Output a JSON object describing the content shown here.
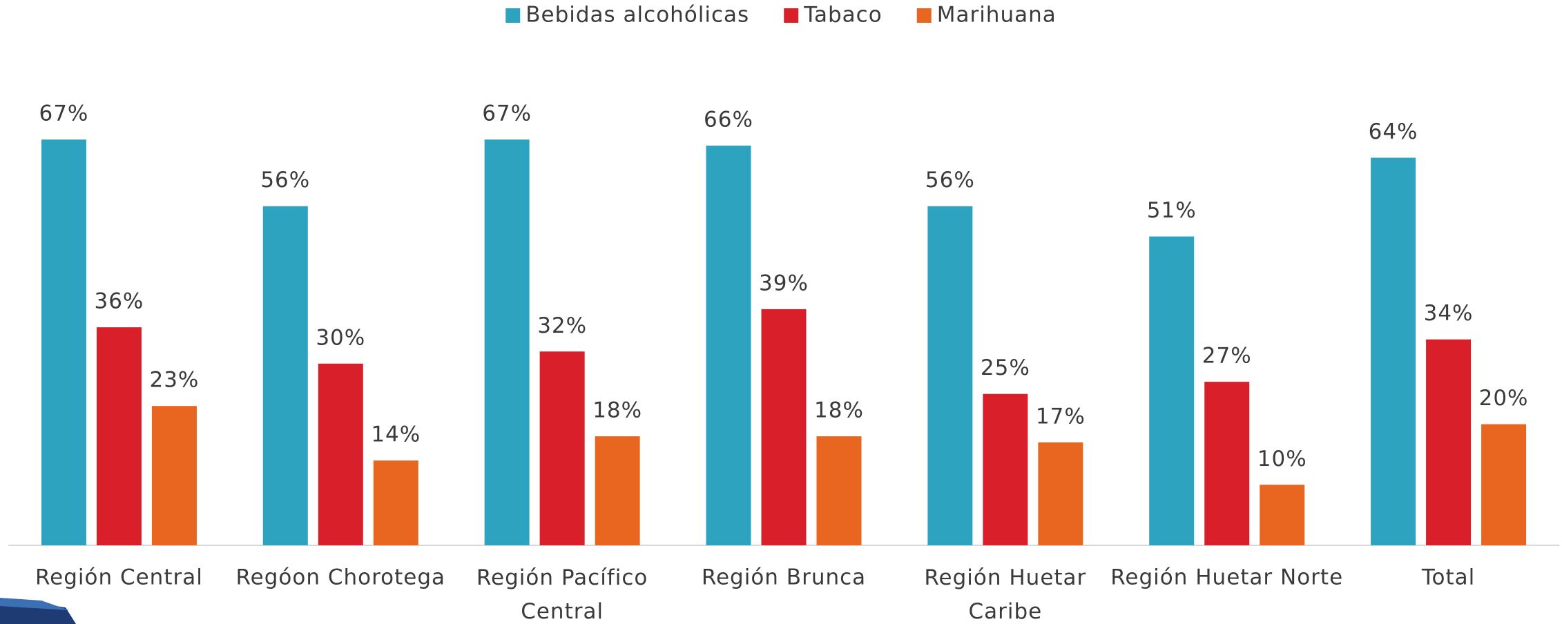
{
  "chart_data": {
    "type": "bar",
    "categories": [
      "Región Central",
      "Regóon Chorotega",
      "Región Pacífico Central",
      "Región Brunca",
      "Región Huetar Caribe",
      "Región Huetar Norte",
      "Total"
    ],
    "series": [
      {
        "name": "Bebidas alcohólicas",
        "color": "#2ea3c0",
        "values": [
          67,
          56,
          67,
          66,
          56,
          51,
          64
        ],
        "value_labels": [
          "67%",
          "56%",
          "67%",
          "66%",
          "56%",
          "51%",
          "64%"
        ]
      },
      {
        "name": "Tabaco",
        "color": "#d91f2a",
        "values": [
          36,
          30,
          32,
          39,
          25,
          27,
          34
        ],
        "value_labels": [
          "36%",
          "30%",
          "32%",
          "39%",
          "25%",
          "27%",
          "34%"
        ]
      },
      {
        "name": "Marihuana",
        "color": "#e8661f",
        "values": [
          23,
          14,
          18,
          18,
          17,
          10,
          20
        ],
        "value_labels": [
          "23%",
          "14%",
          "18%",
          "18%",
          "17%",
          "10%",
          "20%"
        ]
      }
    ],
    "ylim": [
      0,
      75
    ],
    "legend": "top"
  }
}
